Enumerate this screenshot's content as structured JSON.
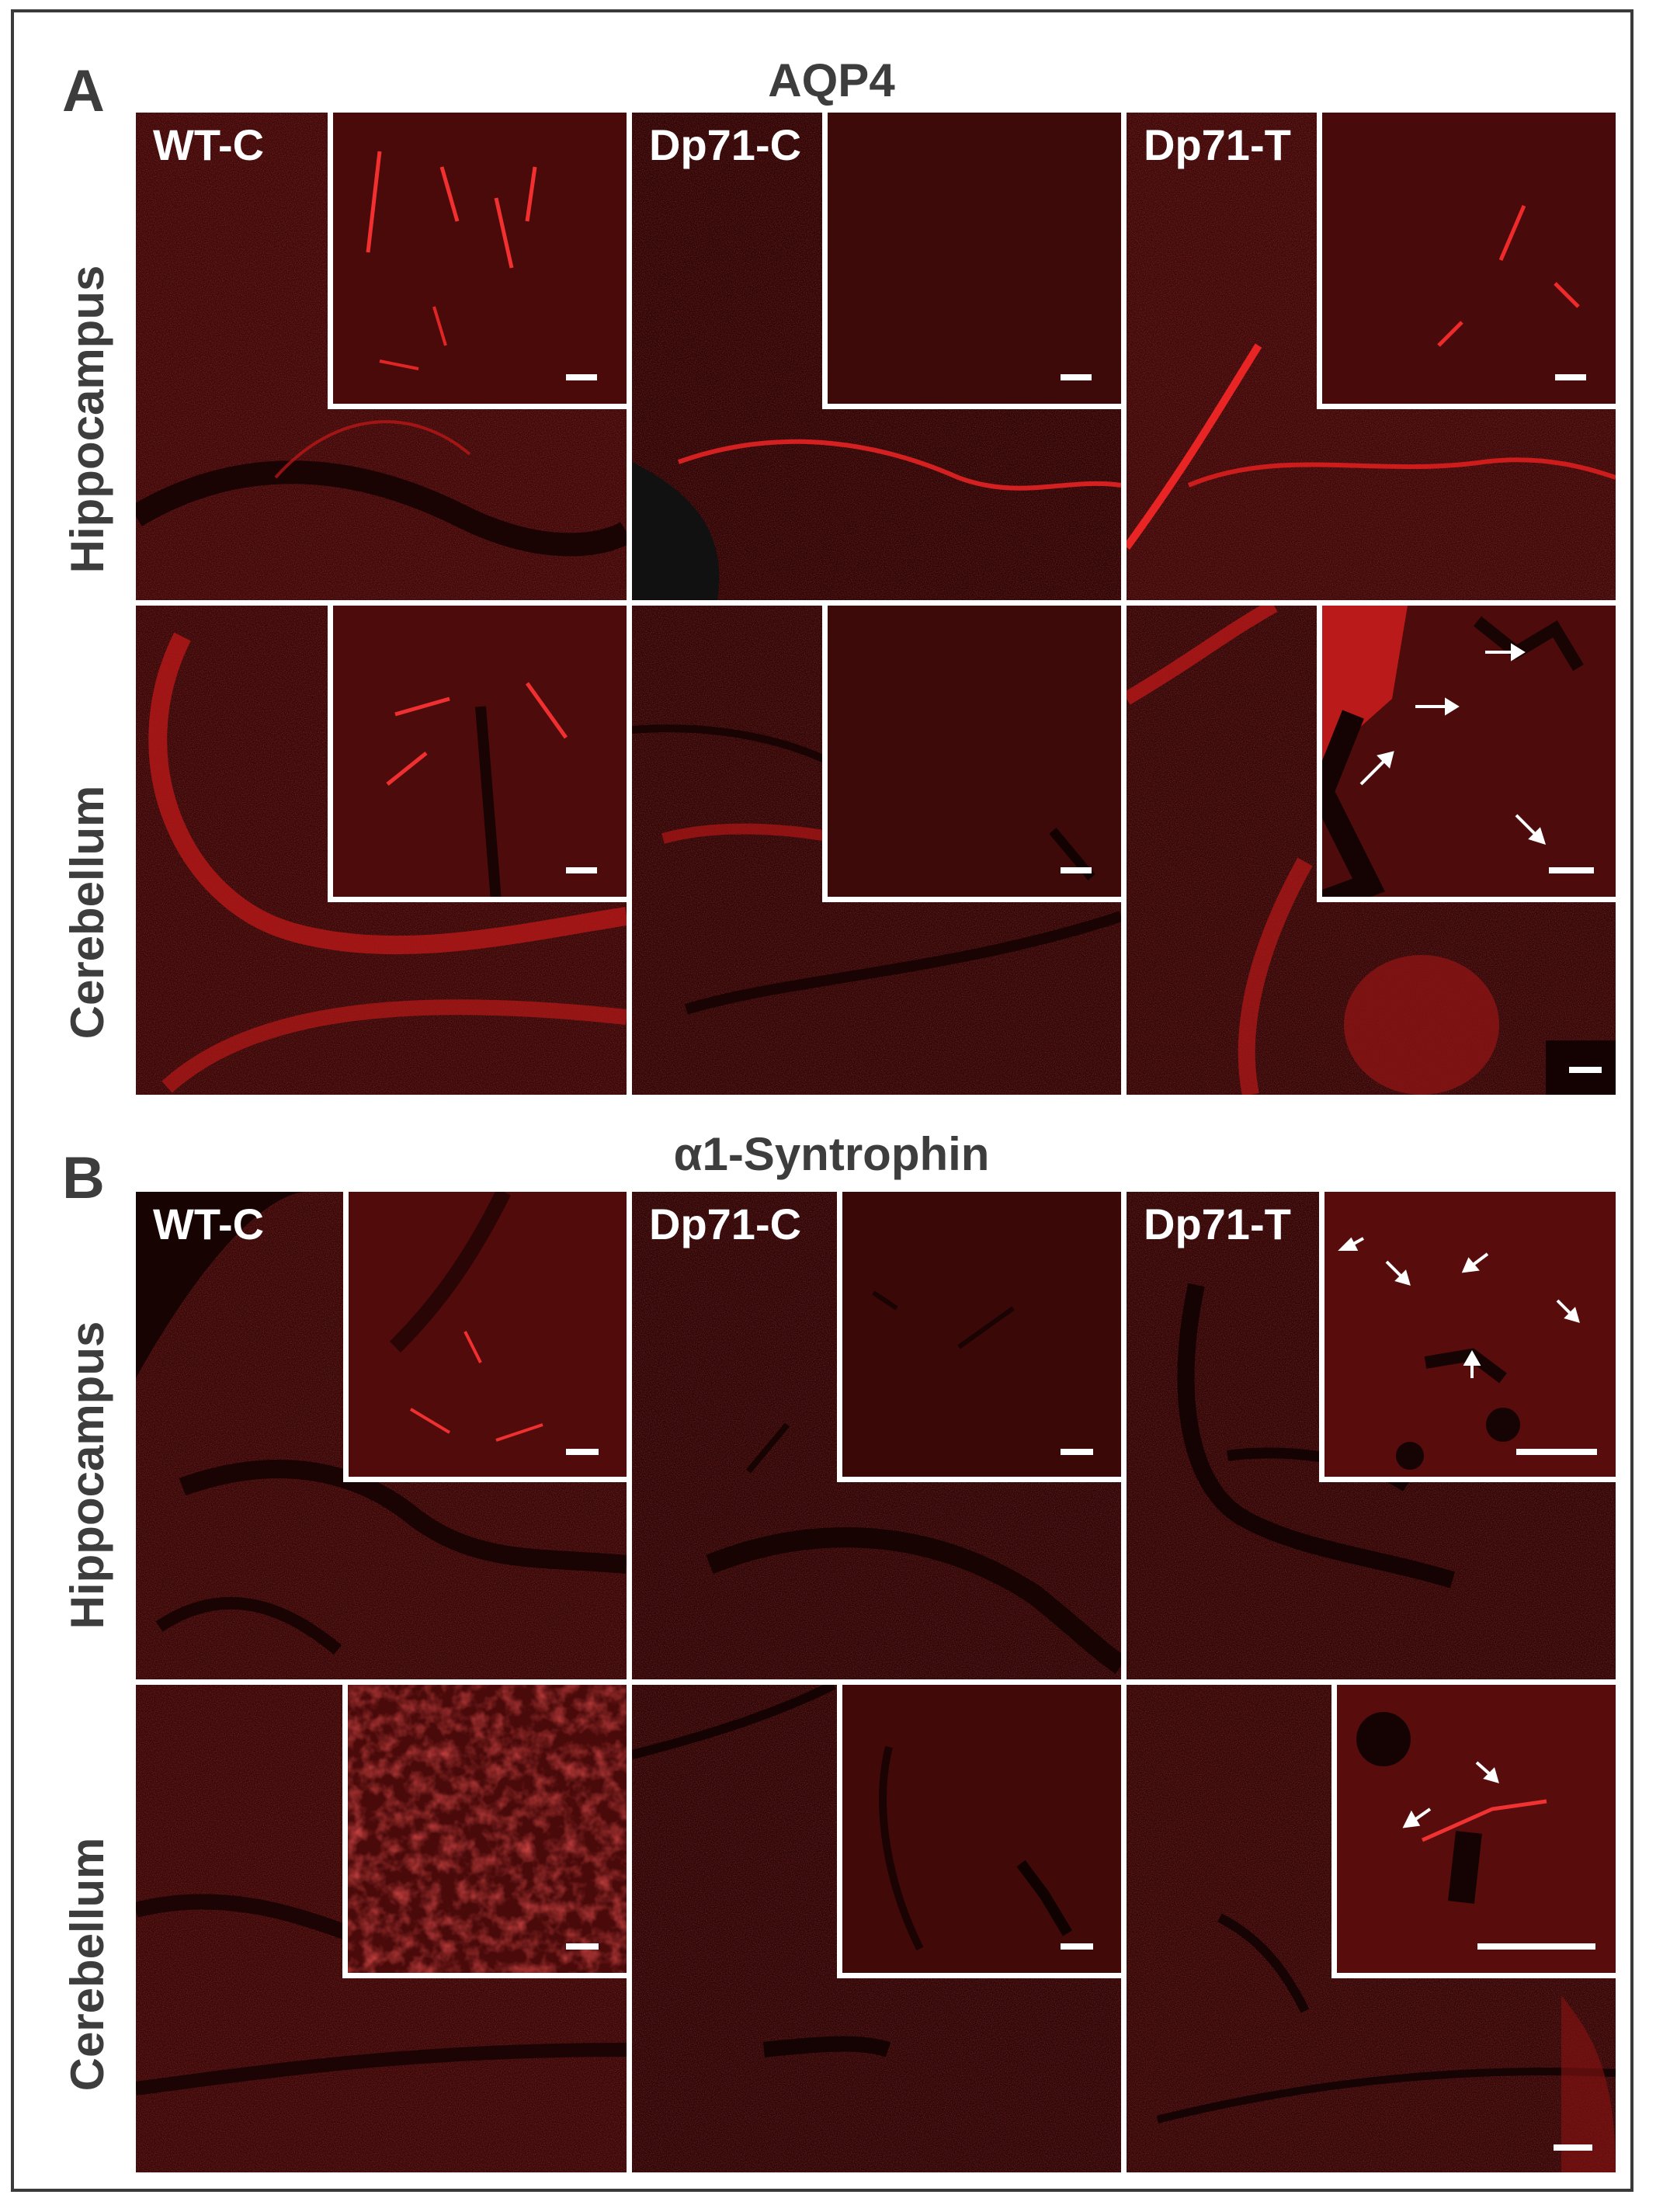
{
  "panels": {
    "A": {
      "letter": "A",
      "title": "AQP4"
    },
    "B": {
      "letter": "B",
      "title": "α1-Syntrophin"
    }
  },
  "rows": {
    "hippocampus": "Hippocampus",
    "cerebellum": "Cerebellum"
  },
  "conditions": [
    "WT-C",
    "Dp71-C",
    "Dp71-T"
  ],
  "colors": {
    "stain": "#e0201e",
    "background": "#2a0505",
    "frame": "#3a3a3a",
    "text": "#3d3d3d"
  }
}
